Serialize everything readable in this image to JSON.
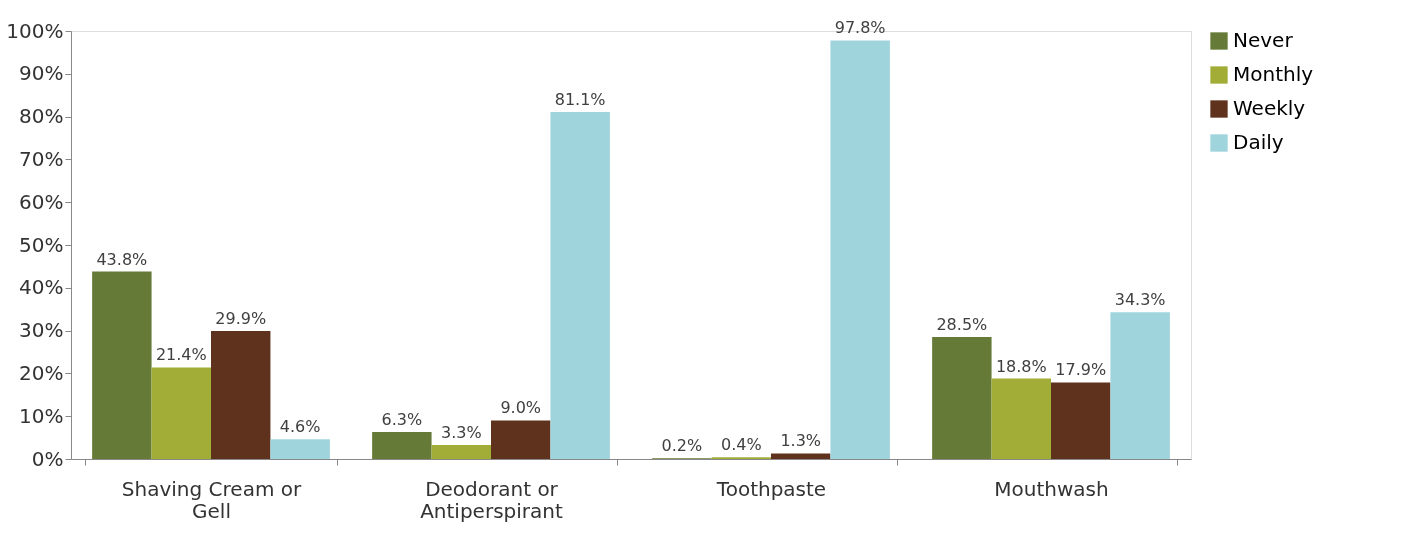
{
  "chart_data": {
    "type": "bar",
    "categories": [
      "Shaving Cream or Gell",
      "Deodorant or Antiperspirant",
      "Toothpaste",
      "Mouthwash"
    ],
    "series": [
      {
        "name": "Never",
        "color": "#657a36",
        "values": [
          43.8,
          6.3,
          0.2,
          28.5
        ],
        "value_labels": [
          "43.8%",
          "6.3%",
          "0.2%",
          "28.5%"
        ]
      },
      {
        "name": "Monthly",
        "color": "#a1ad37",
        "values": [
          21.4,
          3.3,
          0.4,
          18.8
        ],
        "value_labels": [
          "21.4%",
          "3.3%",
          "0.4%",
          "18.8%"
        ]
      },
      {
        "name": "Weekly",
        "color": "#5e321d",
        "values": [
          29.9,
          9.0,
          1.3,
          17.9
        ],
        "value_labels": [
          "29.9%",
          "9.0%",
          "1.3%",
          "17.9%"
        ]
      },
      {
        "name": "Daily",
        "color": "#9fd4dc",
        "values": [
          4.6,
          81.1,
          97.8,
          34.3
        ],
        "value_labels": [
          "4.6%",
          "81.1%",
          "97.8%",
          "34.3%"
        ]
      }
    ],
    "ylim": [
      0,
      100
    ],
    "yticks": [
      {
        "value": 0,
        "label": "0%"
      },
      {
        "value": 10,
        "label": "10%"
      },
      {
        "value": 20,
        "label": "20%"
      },
      {
        "value": 30,
        "label": "30%"
      },
      {
        "value": 40,
        "label": "40%"
      },
      {
        "value": 50,
        "label": "50%"
      },
      {
        "value": 60,
        "label": "60%"
      },
      {
        "value": 70,
        "label": "70%"
      },
      {
        "value": 80,
        "label": "80%"
      },
      {
        "value": 90,
        "label": "90%"
      },
      {
        "value": 100,
        "label": "100%"
      }
    ],
    "grid": false,
    "legend": "right"
  }
}
